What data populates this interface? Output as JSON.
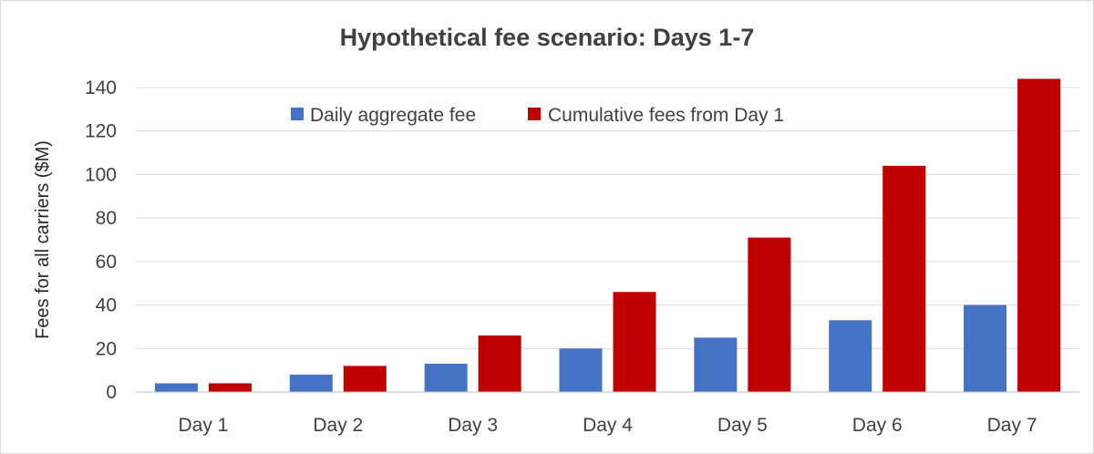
{
  "chart_data": {
    "type": "bar",
    "title": "Hypothetical fee scenario: Days 1-7",
    "xlabel": "",
    "ylabel": "Fees for all carriers ($M)",
    "categories": [
      "Day 1",
      "Day 2",
      "Day 3",
      "Day 4",
      "Day 5",
      "Day 6",
      "Day 7"
    ],
    "series": [
      {
        "name": "Daily aggregate fee",
        "color": "#4472c4",
        "values": [
          4,
          8,
          13,
          20,
          25,
          33,
          40
        ]
      },
      {
        "name": "Cumulative fees from Day 1",
        "color": "#c00000",
        "values": [
          4,
          12,
          26,
          46,
          71,
          104,
          144
        ]
      }
    ],
    "ylim": [
      0,
      140
    ],
    "yticks": [
      0,
      20,
      40,
      60,
      80,
      100,
      120,
      140
    ],
    "grid": true,
    "legend_position": "top"
  }
}
